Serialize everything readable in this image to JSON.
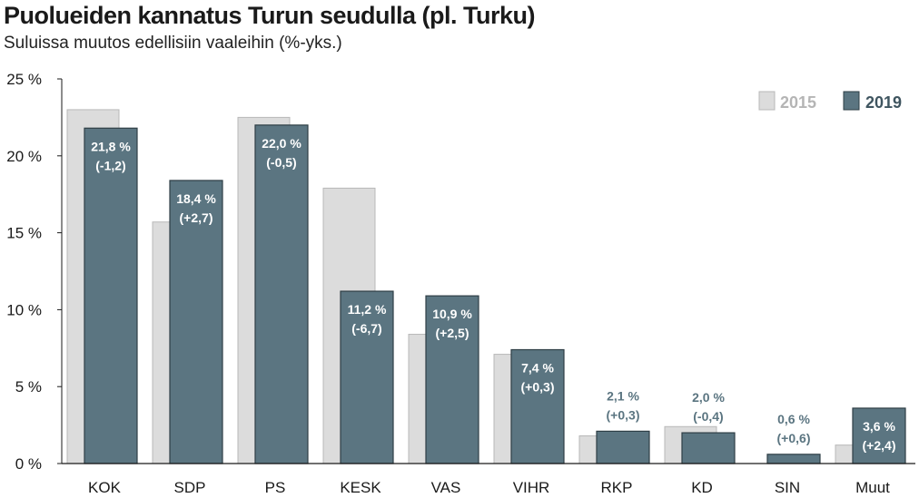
{
  "chart_data": {
    "type": "bar",
    "title": "Puolueiden kannatus Turun seudulla (pl. Turku)",
    "subtitle": "Suluissa muutos edellisiin vaaleihin (%-yks.)",
    "categories": [
      "KOK",
      "SDP",
      "PS",
      "KESK",
      "VAS",
      "VIHR",
      "RKP",
      "KD",
      "SIN",
      "Muut"
    ],
    "series": [
      {
        "name": "2015",
        "color": "#dcdcdc",
        "values": [
          23.0,
          15.7,
          22.5,
          17.9,
          8.4,
          7.1,
          1.8,
          2.4,
          0.0,
          1.2
        ]
      },
      {
        "name": "2019",
        "color": "#5b7581",
        "values": [
          21.8,
          18.4,
          22.0,
          11.2,
          10.9,
          7.4,
          2.1,
          2.0,
          0.6,
          3.6
        ],
        "labels": [
          "21,8 %",
          "18,4 %",
          "22,0 %",
          "11,2 %",
          "10,9 %",
          "7,4 %",
          "2,1 %",
          "2,0 %",
          "0,6 %",
          "3,6 %"
        ],
        "changes": [
          "(-1,2)",
          "(+2,7)",
          "(-0,5)",
          "(-6,7)",
          "(+2,5)",
          "(+0,3)",
          "(+0,3)",
          "(-0,4)",
          "(+0,6)",
          "(+2,4)"
        ]
      }
    ],
    "ylim": [
      0,
      25
    ],
    "yticks": [
      0,
      5,
      10,
      15,
      20,
      25
    ],
    "ytick_labels": [
      "0 %",
      "5 %",
      "10 %",
      "15 %",
      "20 %",
      "25 %"
    ],
    "grid": false,
    "legend_position": "top-right",
    "legend_colors": {
      "2015_text": "#b5b5b5",
      "2019_text": "#3f5560"
    }
  }
}
